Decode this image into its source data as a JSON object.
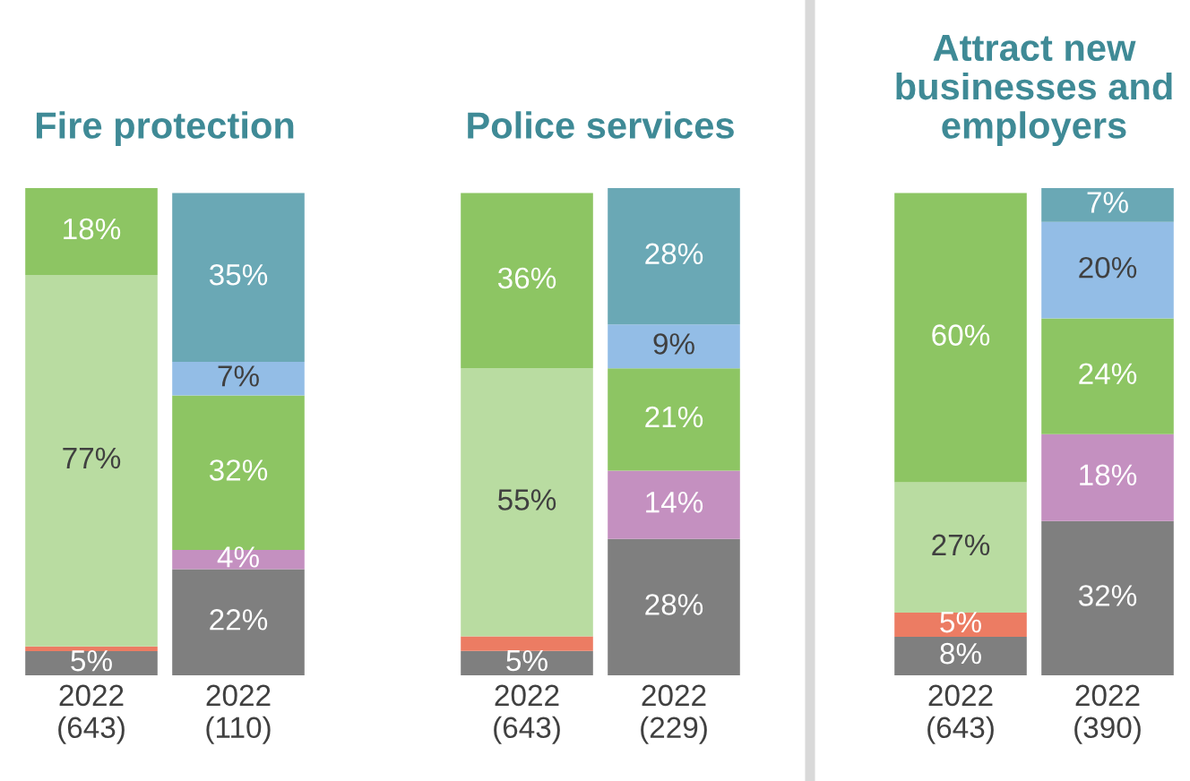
{
  "chart_data": [
    {
      "type": "bar",
      "stacked": true,
      "title": "Fire protection",
      "categories": [
        "2022\n(643)",
        "2022\n(110)"
      ],
      "ylim": [
        0,
        101
      ],
      "tick_labels": "x",
      "series": [
        {
          "color": "#7f7f7f",
          "values": [
            5,
            22
          ],
          "value_labels": [
            "5%",
            "22%"
          ]
        },
        {
          "color": "#ec7c63",
          "values": [
            1,
            null
          ],
          "value_labels": [
            null,
            null
          ]
        },
        {
          "color": "#b9dca1",
          "values": [
            77,
            null
          ],
          "value_labels": [
            "77%",
            null
          ]
        },
        {
          "color": "#c490c0",
          "values": [
            null,
            4
          ],
          "value_labels": [
            null,
            "4%"
          ]
        },
        {
          "color": "#8dc563",
          "values": [
            18,
            32
          ],
          "value_labels": [
            "18%",
            "32%"
          ]
        },
        {
          "color": "#93bde6",
          "values": [
            null,
            7
          ],
          "value_labels": [
            null,
            "7%"
          ]
        },
        {
          "color": "#6aa8b5",
          "values": [
            null,
            35
          ],
          "value_labels": [
            null,
            "35%"
          ]
        }
      ]
    },
    {
      "type": "bar",
      "stacked": true,
      "title": "Police services",
      "categories": [
        "2022\n(643)",
        "2022\n(229)"
      ],
      "ylim": [
        0,
        100
      ],
      "tick_labels": "x",
      "series": [
        {
          "color": "#7f7f7f",
          "values": [
            5,
            28
          ],
          "value_labels": [
            "5%",
            "28%"
          ]
        },
        {
          "color": "#ec7c63",
          "values": [
            3,
            null
          ],
          "value_labels": [
            null,
            null
          ]
        },
        {
          "color": "#b9dca1",
          "values": [
            55,
            null
          ],
          "value_labels": [
            "55%",
            null
          ]
        },
        {
          "color": "#c490c0",
          "values": [
            null,
            14
          ],
          "value_labels": [
            null,
            "14%"
          ]
        },
        {
          "color": "#8dc563",
          "values": [
            36,
            21
          ],
          "value_labels": [
            "36%",
            "21%"
          ]
        },
        {
          "color": "#93bde6",
          "values": [
            null,
            9
          ],
          "value_labels": [
            null,
            "9%"
          ]
        },
        {
          "color": "#6aa8b5",
          "values": [
            null,
            28
          ],
          "value_labels": [
            null,
            "28%"
          ]
        }
      ]
    },
    {
      "type": "bar",
      "stacked": true,
      "title": "Attract new\nbusinesses and\nemployers",
      "categories": [
        "2022\n(643)",
        "2022\n(390)"
      ],
      "ylim": [
        0,
        101
      ],
      "tick_labels": "x",
      "series": [
        {
          "color": "#7f7f7f",
          "values": [
            8,
            32
          ],
          "value_labels": [
            "8%",
            "32%"
          ]
        },
        {
          "color": "#ec7c63",
          "values": [
            5,
            null
          ],
          "value_labels": [
            "5%",
            null
          ]
        },
        {
          "color": "#b9dca1",
          "values": [
            27,
            null
          ],
          "value_labels": [
            "27%",
            null
          ]
        },
        {
          "color": "#c490c0",
          "values": [
            null,
            18
          ],
          "value_labels": [
            null,
            "18%"
          ]
        },
        {
          "color": "#8dc563",
          "values": [
            60,
            24
          ],
          "value_labels": [
            "60%",
            "24%"
          ]
        },
        {
          "color": "#93bde6",
          "values": [
            null,
            20
          ],
          "value_labels": [
            null,
            "20%"
          ]
        },
        {
          "color": "#6aa8b5",
          "values": [
            null,
            7
          ],
          "value_labels": [
            null,
            "7%"
          ]
        }
      ]
    }
  ]
}
